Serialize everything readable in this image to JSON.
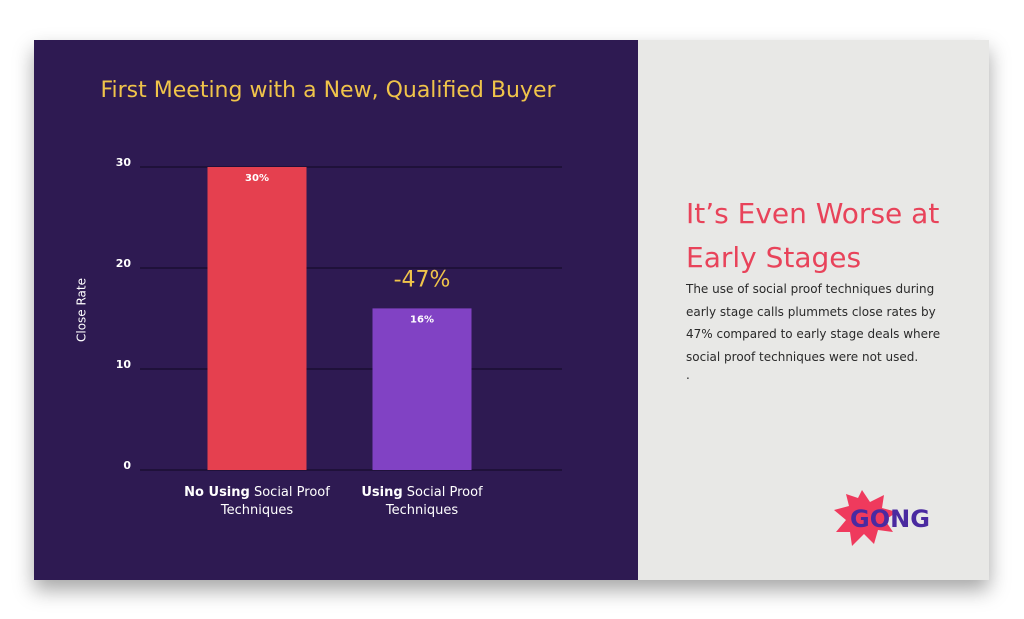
{
  "chart_data": {
    "type": "bar",
    "title": "First Meeting with a New, Qualified Buyer",
    "y_label": "Close Rate",
    "categories": [
      {
        "emphasis": "No Using",
        "text": "Social Proof Techniques"
      },
      {
        "emphasis": "Using",
        "text": "Social Proof Techniques"
      }
    ],
    "values": [
      30,
      16
    ],
    "value_labels": [
      "30%",
      "16%"
    ],
    "colors": [
      "#e5404f",
      "#8142c4"
    ],
    "ylim": [
      0,
      30
    ],
    "yticks": [
      0,
      10,
      20,
      30
    ],
    "grid": true,
    "annotation": "-47%"
  },
  "panel": {
    "heading": "It’s Even Worse at Early Stages",
    "body": "The use of social proof techniques during early stage calls plummets close rates by 47% compared to early stage deals where social proof techniques were not used.",
    "note": ".",
    "logo": "GONG"
  }
}
